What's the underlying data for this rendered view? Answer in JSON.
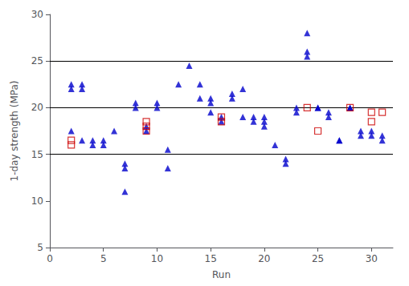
{
  "chart_data": {
    "type": "scatter",
    "xlabel": "Run",
    "ylabel": "1-day strength (MPa)",
    "xlim": [
      0,
      32
    ],
    "ylim": [
      5,
      30
    ],
    "xticks": [
      0,
      5,
      10,
      15,
      20,
      25,
      30
    ],
    "yticks": [
      5,
      10,
      15,
      20,
      25,
      30
    ],
    "grid": false,
    "hlines": [
      15,
      20,
      25
    ],
    "series": [
      {
        "color": "#0000CC",
        "marker": "triangle",
        "x": [
          2,
          2,
          2,
          3,
          3,
          3,
          4,
          4,
          5,
          5,
          6,
          7,
          7,
          7,
          8,
          8,
          9,
          9,
          10,
          10,
          11,
          11,
          12,
          13,
          14,
          14,
          15,
          15,
          15,
          16,
          16,
          17,
          17,
          18,
          18,
          19,
          19,
          20,
          20,
          20,
          21,
          22,
          22,
          23,
          23,
          24,
          24,
          24,
          25,
          25,
          26,
          26,
          27,
          27,
          28,
          28,
          29,
          29,
          30,
          30,
          31,
          31
        ],
        "values": [
          22.5,
          22.0,
          17.5,
          22.5,
          22.0,
          16.5,
          16.5,
          16.0,
          16.5,
          16.0,
          17.5,
          14.0,
          13.5,
          11.0,
          20.5,
          20.0,
          18.0,
          17.5,
          20.5,
          20.0,
          15.5,
          13.5,
          22.5,
          24.5,
          22.5,
          21.0,
          21.0,
          20.5,
          19.5,
          19.0,
          18.5,
          21.5,
          21.0,
          22.0,
          19.0,
          19.0,
          18.5,
          19.0,
          18.5,
          18.0,
          16.0,
          14.5,
          14.0,
          20.0,
          19.5,
          28.0,
          26.0,
          25.5,
          20.0,
          20.0,
          19.5,
          19.0,
          16.5,
          16.5,
          20.0,
          20.0,
          17.5,
          17.0,
          17.5,
          17.0,
          17.0,
          16.5
        ]
      },
      {
        "color": "#CC0000",
        "marker": "square-open",
        "x": [
          2,
          2,
          9,
          9,
          9,
          16,
          16,
          24,
          25,
          28,
          30,
          30,
          31
        ],
        "values": [
          16.5,
          16.0,
          18.5,
          18.0,
          17.5,
          19.0,
          18.5,
          20.0,
          17.5,
          20.0,
          19.5,
          18.5,
          19.5
        ]
      }
    ]
  }
}
